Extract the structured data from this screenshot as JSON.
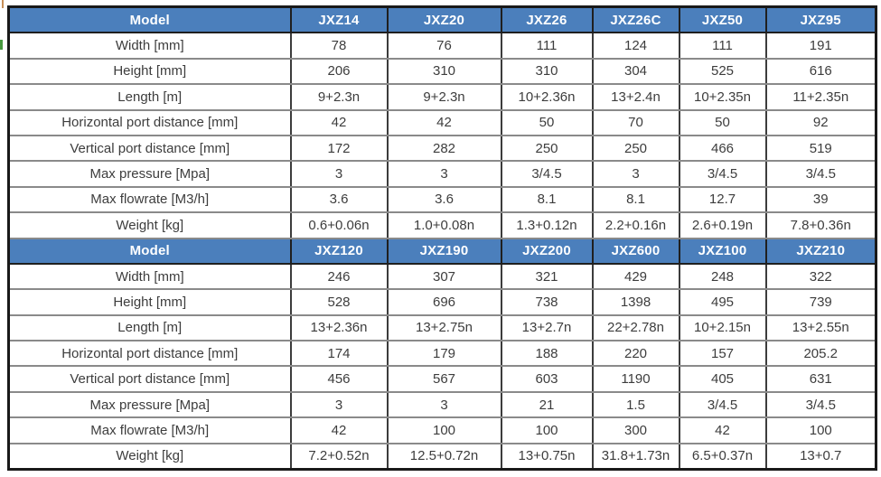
{
  "table": {
    "header_label": "Model",
    "row_labels": [
      "Width [mm]",
      "Height [mm]",
      "Length [m]",
      "Horizontal port distance [mm]",
      "Vertical port distance  [mm]",
      "Max pressure [Mpa]",
      "Max flowrate  [M3/h]",
      "Weight [kg]"
    ],
    "sections": [
      {
        "models": [
          "JXZ14",
          "JXZ20",
          "JXZ26",
          "JXZ26C",
          "JXZ50",
          "JXZ95"
        ],
        "rows": [
          [
            "78",
            "76",
            "111",
            "124",
            "111",
            "191"
          ],
          [
            "206",
            "310",
            "310",
            "304",
            "525",
            "616"
          ],
          [
            "9+2.3n",
            "9+2.3n",
            "10+2.36n",
            "13+2.4n",
            "10+2.35n",
            "11+2.35n"
          ],
          [
            "42",
            "42",
            "50",
            "70",
            "50",
            "92"
          ],
          [
            "172",
            "282",
            "250",
            "250",
            "466",
            "519"
          ],
          [
            "3",
            "3",
            "3/4.5",
            "3",
            "3/4.5",
            "3/4.5"
          ],
          [
            "3.6",
            "3.6",
            "8.1",
            "8.1",
            "12.7",
            "39"
          ],
          [
            "0.6+0.06n",
            "1.0+0.08n",
            "1.3+0.12n",
            "2.2+0.16n",
            "2.6+0.19n",
            "7.8+0.36n"
          ]
        ]
      },
      {
        "models": [
          "JXZ120",
          "JXZ190",
          "JXZ200",
          "JXZ600",
          "JXZ100",
          "JXZ210"
        ],
        "rows": [
          [
            "246",
            "307",
            "321",
            "429",
            "248",
            "322"
          ],
          [
            "528",
            "696",
            "738",
            "1398",
            "495",
            "739"
          ],
          [
            "13+2.36n",
            "13+2.75n",
            "13+2.7n",
            "22+2.78n",
            "10+2.15n",
            "13+2.55n"
          ],
          [
            "174",
            "179",
            "188",
            "220",
            "157",
            "205.2"
          ],
          [
            "456",
            "567",
            "603",
            "1190",
            "405",
            "631"
          ],
          [
            "3",
            "3",
            "21",
            "1.5",
            "3/4.5",
            "3/4.5"
          ],
          [
            "42",
            "100",
            "100",
            "300",
            "42",
            "100"
          ],
          [
            "7.2+0.52n",
            "12.5+0.72n",
            "13+0.75n",
            "31.8+1.73n",
            "6.5+0.37n",
            "13+0.7"
          ]
        ]
      }
    ],
    "colors": {
      "header_bg": "#4b7fbc",
      "header_text": "#ffffff",
      "body_text": "#3d3d3d",
      "horizontal_rule": "#8a8a8a",
      "vertical_rule": "#3c3c3c",
      "outer_border": "#191919"
    }
  },
  "artifacts": {
    "corner_mark_color": "#c89058",
    "green_mark_color": "#47993f"
  }
}
